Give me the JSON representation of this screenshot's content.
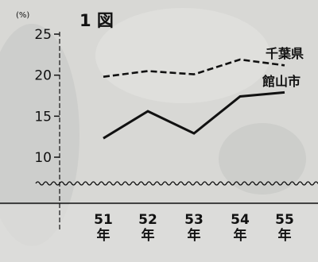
{
  "chart_data": {
    "type": "line",
    "title": "1 図",
    "ylabel": "(%)",
    "xlabel": "",
    "categories": [
      "51\n年",
      "52\n年",
      "53\n年",
      "54\n年",
      "55\n年"
    ],
    "yticks": [
      "10",
      "15",
      "20",
      "25"
    ],
    "ylim": [
      7,
      25
    ],
    "axis_break": true,
    "grid": false,
    "series": [
      {
        "name": "千葉県",
        "style": "dashed",
        "values": [
          19.8,
          20.5,
          20.1,
          21.9,
          21.2
        ]
      },
      {
        "name": "館山市",
        "style": "solid",
        "values": [
          12.3,
          15.6,
          12.9,
          17.4,
          17.9
        ]
      }
    ],
    "colors": {
      "ink": "#111111",
      "background": "#d8d8d5"
    }
  }
}
